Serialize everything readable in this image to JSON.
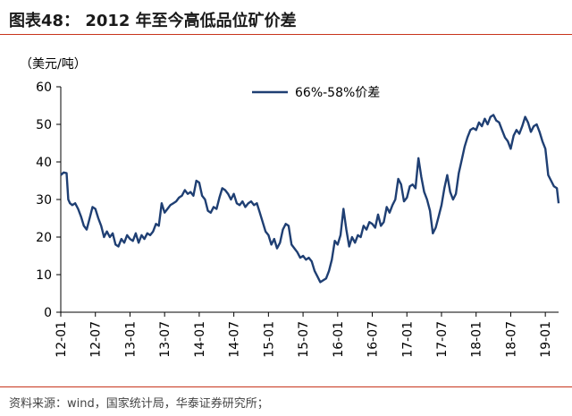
{
  "figure": {
    "title": "图表48： 2012 年至今高低品位矿价差",
    "source": "资料来源：wind，国家统计局，华泰证券研究所；"
  },
  "colors": {
    "line": "#1f3f73",
    "accent_rule": "#c8341c",
    "axis": "#000000"
  },
  "chart_data": {
    "type": "line",
    "unit_label": "（美元/吨）",
    "legend": "66%-58%价差",
    "legend_position": "top-center",
    "grid": false,
    "ylim": [
      0,
      60
    ],
    "yticks": [
      "0",
      "10",
      "20",
      "30",
      "40",
      "50",
      "60"
    ],
    "xticks": [
      "12-01",
      "12-07",
      "13-01",
      "13-07",
      "14-01",
      "14-07",
      "15-01",
      "15-07",
      "16-01",
      "16-07",
      "17-01",
      "17-07",
      "18-01",
      "18-07",
      "19-01"
    ],
    "series": [
      {
        "name": "66%-58%价差",
        "points": [
          [
            0,
            36.5
          ],
          [
            0.5,
            37.2
          ],
          [
            1.0,
            37.0
          ],
          [
            1.3,
            30.0
          ],
          [
            1.6,
            29.0
          ],
          [
            2.0,
            28.5
          ],
          [
            2.5,
            29.0
          ],
          [
            3.0,
            27.5
          ],
          [
            3.5,
            25.5
          ],
          [
            4.0,
            23.0
          ],
          [
            4.5,
            22.0
          ],
          [
            5.0,
            25.0
          ],
          [
            5.5,
            28.0
          ],
          [
            6.0,
            27.5
          ],
          [
            6.5,
            25.0
          ],
          [
            7.0,
            23.0
          ],
          [
            7.5,
            20.0
          ],
          [
            8.0,
            21.5
          ],
          [
            8.5,
            20.0
          ],
          [
            9.0,
            21.0
          ],
          [
            9.5,
            18.0
          ],
          [
            10.0,
            17.5
          ],
          [
            10.5,
            19.5
          ],
          [
            11.0,
            18.5
          ],
          [
            11.5,
            20.5
          ],
          [
            12.0,
            19.5
          ],
          [
            12.5,
            19.0
          ],
          [
            13.0,
            21.0
          ],
          [
            13.5,
            18.5
          ],
          [
            14.0,
            20.5
          ],
          [
            14.5,
            19.5
          ],
          [
            15.0,
            21.0
          ],
          [
            15.5,
            20.5
          ],
          [
            16.0,
            21.5
          ],
          [
            16.5,
            23.5
          ],
          [
            17.0,
            23.0
          ],
          [
            17.5,
            29.0
          ],
          [
            18.0,
            26.5
          ],
          [
            18.5,
            27.5
          ],
          [
            19.0,
            28.5
          ],
          [
            19.5,
            29.0
          ],
          [
            20.0,
            29.5
          ],
          [
            20.5,
            30.5
          ],
          [
            21.0,
            31.0
          ],
          [
            21.5,
            32.5
          ],
          [
            22.0,
            31.5
          ],
          [
            22.5,
            32.0
          ],
          [
            23.0,
            31.0
          ],
          [
            23.5,
            35.0
          ],
          [
            24.0,
            34.5
          ],
          [
            24.5,
            31.0
          ],
          [
            25.0,
            30.0
          ],
          [
            25.5,
            27.0
          ],
          [
            26.0,
            26.5
          ],
          [
            26.5,
            28.0
          ],
          [
            27.0,
            27.5
          ],
          [
            27.5,
            30.5
          ],
          [
            28.0,
            33.0
          ],
          [
            28.5,
            32.5
          ],
          [
            29.0,
            31.5
          ],
          [
            29.5,
            30.0
          ],
          [
            30.0,
            31.5
          ],
          [
            30.5,
            29.0
          ],
          [
            31.0,
            28.5
          ],
          [
            31.5,
            29.5
          ],
          [
            32.0,
            28.0
          ],
          [
            32.5,
            29.0
          ],
          [
            33.0,
            29.5
          ],
          [
            33.5,
            28.5
          ],
          [
            34.0,
            29.0
          ],
          [
            34.5,
            26.5
          ],
          [
            35.0,
            24.0
          ],
          [
            35.5,
            21.5
          ],
          [
            36.0,
            20.5
          ],
          [
            36.5,
            18.0
          ],
          [
            37.0,
            19.5
          ],
          [
            37.5,
            17.0
          ],
          [
            38.0,
            18.5
          ],
          [
            38.5,
            22.0
          ],
          [
            39.0,
            23.5
          ],
          [
            39.5,
            23.0
          ],
          [
            40.0,
            18.0
          ],
          [
            40.5,
            17.0
          ],
          [
            41.0,
            16.0
          ],
          [
            41.5,
            14.5
          ],
          [
            42.0,
            15.0
          ],
          [
            42.5,
            14.0
          ],
          [
            43.0,
            14.5
          ],
          [
            43.5,
            13.5
          ],
          [
            44.0,
            11.0
          ],
          [
            44.5,
            9.5
          ],
          [
            45.0,
            8.0
          ],
          [
            45.5,
            8.5
          ],
          [
            46.0,
            9.0
          ],
          [
            46.5,
            11.0
          ],
          [
            47.0,
            14.0
          ],
          [
            47.5,
            19.0
          ],
          [
            48.0,
            18.0
          ],
          [
            48.5,
            20.5
          ],
          [
            49.0,
            27.5
          ],
          [
            49.5,
            22.0
          ],
          [
            50.0,
            17.5
          ],
          [
            50.5,
            20.0
          ],
          [
            51.0,
            18.5
          ],
          [
            51.5,
            20.5
          ],
          [
            52.0,
            20.0
          ],
          [
            52.5,
            23.0
          ],
          [
            53.0,
            22.0
          ],
          [
            53.5,
            24.0
          ],
          [
            54.0,
            23.5
          ],
          [
            54.5,
            22.5
          ],
          [
            55.0,
            26.0
          ],
          [
            55.5,
            23.0
          ],
          [
            56.0,
            24.0
          ],
          [
            56.5,
            28.0
          ],
          [
            57.0,
            26.5
          ],
          [
            57.5,
            28.5
          ],
          [
            58.0,
            30.0
          ],
          [
            58.5,
            35.5
          ],
          [
            59.0,
            34.0
          ],
          [
            59.5,
            29.5
          ],
          [
            60.0,
            30.5
          ],
          [
            60.5,
            33.5
          ],
          [
            61.0,
            34.0
          ],
          [
            61.5,
            33.0
          ],
          [
            62.0,
            41.0
          ],
          [
            62.5,
            36.0
          ],
          [
            63.0,
            32.0
          ],
          [
            63.5,
            30.0
          ],
          [
            64.0,
            27.0
          ],
          [
            64.5,
            21.0
          ],
          [
            65.0,
            22.5
          ],
          [
            65.5,
            25.5
          ],
          [
            66.0,
            28.5
          ],
          [
            66.5,
            33.0
          ],
          [
            67.0,
            36.5
          ],
          [
            67.5,
            32.0
          ],
          [
            68.0,
            30.0
          ],
          [
            68.5,
            31.5
          ],
          [
            69.0,
            37.0
          ],
          [
            69.5,
            40.5
          ],
          [
            70.0,
            44.0
          ],
          [
            70.5,
            46.5
          ],
          [
            71.0,
            48.5
          ],
          [
            71.5,
            49.0
          ],
          [
            72.0,
            48.5
          ],
          [
            72.5,
            50.5
          ],
          [
            73.0,
            49.5
          ],
          [
            73.5,
            51.5
          ],
          [
            74.0,
            50.0
          ],
          [
            74.5,
            52.0
          ],
          [
            75.0,
            52.5
          ],
          [
            75.5,
            51.0
          ],
          [
            76.0,
            50.5
          ],
          [
            76.5,
            48.5
          ],
          [
            77.0,
            46.5
          ],
          [
            77.5,
            45.5
          ],
          [
            78.0,
            43.5
          ],
          [
            78.5,
            47.0
          ],
          [
            79.0,
            48.5
          ],
          [
            79.5,
            47.5
          ],
          [
            80.0,
            49.5
          ],
          [
            80.5,
            52.0
          ],
          [
            81.0,
            50.5
          ],
          [
            81.5,
            48.0
          ],
          [
            82.0,
            49.5
          ],
          [
            82.5,
            50.0
          ],
          [
            83.0,
            48.0
          ],
          [
            83.5,
            45.5
          ],
          [
            84.0,
            43.5
          ],
          [
            84.5,
            36.5
          ],
          [
            85.0,
            35.0
          ],
          [
            85.5,
            33.5
          ],
          [
            86.0,
            33.0
          ],
          [
            86.3,
            29.0
          ]
        ]
      }
    ]
  }
}
